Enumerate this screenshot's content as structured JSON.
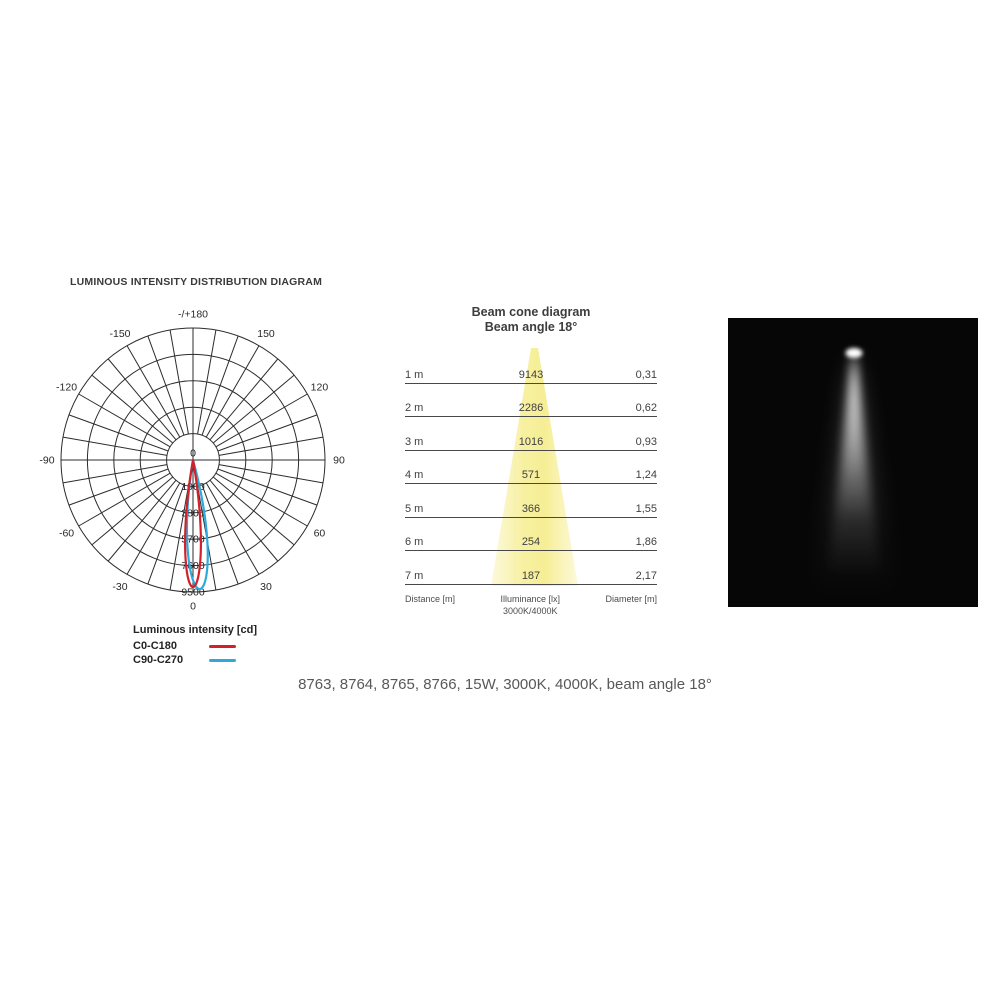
{
  "header": {
    "title": "LUMINOUS INTENSITY DISTRIBUTION DIAGRAM"
  },
  "legend": {
    "title": "Luminous intensity [cd]"
  },
  "beam_cone": {
    "title": "Beam cone diagram",
    "subtitle": "Beam angle 18°",
    "footer": {
      "distance": "Distance [m]",
      "illuminance": "Illuminance [lx]",
      "illuminance_sub": "3000K/4000K",
      "diameter": "Diameter [m]"
    },
    "cone_color_center": "#F6EE95",
    "cone_color_edge": "#FCF9D8"
  },
  "photo": {
    "background": "#060606",
    "beam_color": "#FFFFFF"
  },
  "caption": "8763, 8764, 8765, 8766, 15W, 3000K, 4000K, beam angle 18°",
  "chart_data": [
    {
      "type": "line",
      "variant": "polar",
      "title": "LUMINOUS INTENSITY DISTRIBUTION DIAGRAM",
      "units_label": "Luminous intensity [cd]",
      "ring_values": [
        1900,
        3800,
        5700,
        7600,
        9500
      ],
      "ring_max": 9500,
      "center_label": "0",
      "angle_tick_step_deg": 10,
      "angle_labels": [
        {
          "deg": 0,
          "label": "0"
        },
        {
          "deg": 30,
          "label": "30"
        },
        {
          "deg": 60,
          "label": "60"
        },
        {
          "deg": 90,
          "label": "90"
        },
        {
          "deg": 120,
          "label": "120"
        },
        {
          "deg": 150,
          "label": "150"
        },
        {
          "deg": 180,
          "label": "-/+180"
        },
        {
          "deg": -150,
          "label": "-150"
        },
        {
          "deg": -120,
          "label": "-120"
        },
        {
          "deg": -90,
          "label": "-90"
        },
        {
          "deg": -60,
          "label": "-60"
        },
        {
          "deg": -30,
          "label": "-30"
        }
      ],
      "series": [
        {
          "name": "C0-C180",
          "color": "#D2212A",
          "peak_cd": 9143,
          "peak_angle_deg": 0,
          "drawn_zero_half_width_deg": 10
        },
        {
          "name": "C90-C270",
          "color": "#2FA9DC",
          "peak_cd": 9300,
          "peak_angle_deg": 3,
          "drawn_zero_half_width_deg": 12.5
        }
      ]
    },
    {
      "type": "table",
      "title": "Beam cone diagram",
      "subtitle": "Beam angle 18°",
      "beam_angle_deg": 18,
      "columns": [
        "Distance [m]",
        "Illuminance [lx] 3000K/4000K",
        "Diameter [m]"
      ],
      "rows": [
        [
          "1 m",
          "9143",
          "0,31"
        ],
        [
          "2 m",
          "2286",
          "0,62"
        ],
        [
          "3 m",
          "1016",
          "0,93"
        ],
        [
          "4 m",
          "571",
          "1,24"
        ],
        [
          "5 m",
          "366",
          "1,55"
        ],
        [
          "6 m",
          "254",
          "1,86"
        ],
        [
          "7 m",
          "187",
          "2,17"
        ]
      ]
    }
  ]
}
